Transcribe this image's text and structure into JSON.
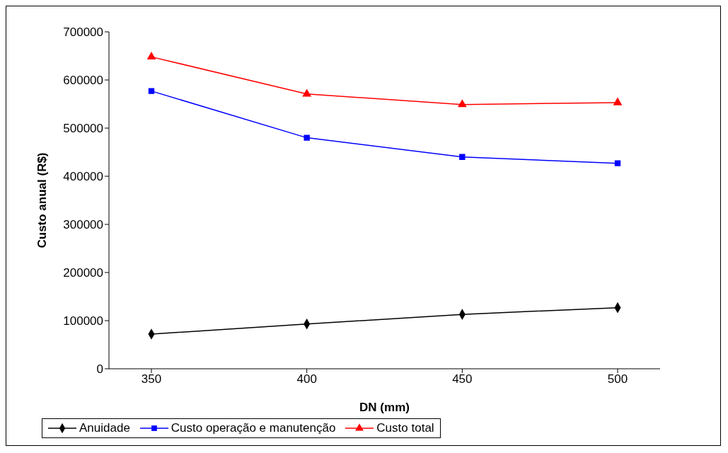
{
  "chart_data": {
    "type": "line",
    "xlabel": "DN (mm)",
    "ylabel": "Custo anual (R$)",
    "categories": [
      "350",
      "400",
      "450",
      "500"
    ],
    "ylim": [
      0,
      700000
    ],
    "yticks": [
      0,
      100000,
      200000,
      300000,
      400000,
      500000,
      600000,
      700000
    ],
    "grid": false,
    "legend": "bottom",
    "series": [
      {
        "name": "Anuidade",
        "color": "#000000",
        "marker": "diamond",
        "values": [
          72000,
          93000,
          113000,
          127000
        ]
      },
      {
        "name": "Custo operação e manutenção",
        "color": "#0000ff",
        "marker": "square",
        "values": [
          577000,
          480000,
          440000,
          427000
        ]
      },
      {
        "name": "Custo total",
        "color": "#ff0000",
        "marker": "triangle",
        "values": [
          648000,
          571000,
          549000,
          553000
        ]
      }
    ]
  }
}
